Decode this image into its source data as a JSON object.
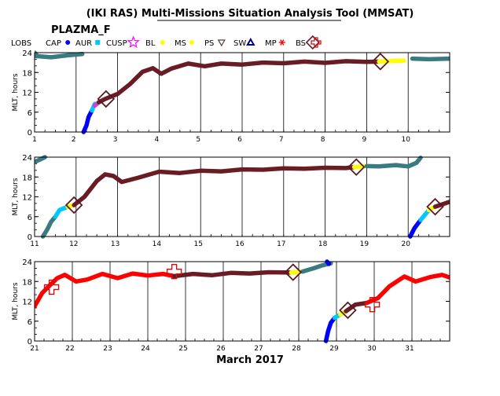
{
  "title": "(IKI RAS) Multi-Missions Situation Analysis Tool (MMSAT)",
  "mission": "PLAZMA_F",
  "month_label": "March 2017",
  "ylabel": "MLT, hours",
  "legend": [
    {
      "label": "LOBS",
      "symbol": "none",
      "color": "#000000"
    },
    {
      "label": "CAP",
      "symbol": "dot",
      "color": "#0000ff"
    },
    {
      "label": "AUR",
      "symbol": "square",
      "color": "#00c8ff"
    },
    {
      "label": "CUSP",
      "symbol": "star",
      "color": "#ff00ff"
    },
    {
      "label": "BL",
      "symbol": "dot",
      "color": "#ffff00"
    },
    {
      "label": "MS",
      "symbol": "dot",
      "color": "#ffff00"
    },
    {
      "label": "PS",
      "symbol": "triangle-down",
      "color": "#5a3a2a"
    },
    {
      "label": "SW",
      "symbol": "triangle",
      "color": "#000080"
    },
    {
      "label": "MP",
      "symbol": "asterisk",
      "color": "#ff0000"
    },
    {
      "label": "BS",
      "symbol": "diamond",
      "color": "#6a1c24"
    },
    {
      "label": "",
      "symbol": "cross",
      "color": "#cc1010"
    }
  ],
  "chart_data": [
    {
      "type": "line",
      "xlim": [
        1,
        11
      ],
      "xticks": [
        "1",
        "2",
        "3",
        "4",
        "5",
        "6",
        "7",
        "8",
        "9",
        "10"
      ],
      "ylim": [
        0,
        24
      ],
      "yticks": [
        "0",
        "6",
        "12",
        "18",
        "24"
      ],
      "ylabel": "MLT, hours",
      "series": [
        {
          "region": "SW",
          "color": "#3a7a80",
          "points": [
            [
              1.0,
              23.0
            ],
            [
              1.4,
              22.6
            ],
            [
              1.8,
              23.2
            ],
            [
              2.15,
              23.6
            ]
          ]
        },
        {
          "region": "SW",
          "color": "#3a7a80",
          "points": [
            [
              1.0,
              24.0
            ],
            [
              1.05,
              23.3
            ]
          ]
        },
        {
          "region": "CAP",
          "color": "#0000ff",
          "points": [
            [
              2.18,
              0.0
            ],
            [
              2.25,
              2.0
            ],
            [
              2.3,
              4.5
            ],
            [
              2.38,
              6.5
            ]
          ]
        },
        {
          "region": "AUR",
          "color": "#00c8ff",
          "points": [
            [
              2.38,
              6.5
            ],
            [
              2.45,
              8.5
            ]
          ]
        },
        {
          "region": "CUSP",
          "color": "#cc44cc",
          "points": [
            [
              2.45,
              8.0
            ],
            [
              2.55,
              9.0
            ]
          ]
        },
        {
          "region": "MS",
          "color": "#6a1c24",
          "points": [
            [
              2.55,
              9.0
            ],
            [
              2.7,
              10.0
            ],
            [
              3.0,
              11.5
            ],
            [
              3.3,
              14.5
            ],
            [
              3.6,
              18.2
            ],
            [
              3.85,
              19.3
            ],
            [
              4.05,
              17.6
            ],
            [
              4.3,
              19.2
            ],
            [
              4.7,
              20.7
            ],
            [
              5.1,
              19.9
            ],
            [
              5.5,
              20.7
            ],
            [
              6.0,
              20.4
            ],
            [
              6.5,
              21.0
            ],
            [
              7.0,
              20.8
            ],
            [
              7.5,
              21.3
            ],
            [
              8.0,
              20.9
            ],
            [
              8.5,
              21.4
            ],
            [
              9.0,
              21.2
            ],
            [
              9.3,
              21.3
            ]
          ]
        },
        {
          "region": "BL",
          "color": "#ffff00",
          "points": [
            [
              9.3,
              21.3
            ],
            [
              9.9,
              21.6
            ]
          ]
        },
        {
          "region": "SW",
          "color": "#3a7a80",
          "points": [
            [
              10.1,
              22.2
            ],
            [
              10.5,
              22.0
            ],
            [
              11.0,
              22.2
            ]
          ]
        }
      ],
      "crossings": [
        {
          "type": "BS",
          "x": 2.72,
          "y": 10.0
        },
        {
          "type": "BS",
          "x": 9.33,
          "y": 21.3
        }
      ]
    },
    {
      "type": "line",
      "xlim": [
        11,
        21
      ],
      "xticks": [
        "11",
        "12",
        "13",
        "14",
        "15",
        "16",
        "17",
        "18",
        "19",
        "20"
      ],
      "ylim": [
        0,
        24
      ],
      "yticks": [
        "0",
        "6",
        "12",
        "18",
        "24"
      ],
      "ylabel": "MLT, hours",
      "series": [
        {
          "region": "SW",
          "color": "#3a7a80",
          "points": [
            [
              11.0,
              22.5
            ],
            [
              11.25,
              24.0
            ]
          ]
        },
        {
          "region": "SW",
          "color": "#3a7a80",
          "points": [
            [
              11.2,
              0.0
            ],
            [
              11.3,
              2.0
            ],
            [
              11.4,
              4.5
            ],
            [
              11.5,
              6.0
            ]
          ]
        },
        {
          "region": "AUR",
          "color": "#00c8ff",
          "points": [
            [
              11.5,
              6.0
            ],
            [
              11.6,
              8.0
            ],
            [
              11.8,
              9.0
            ]
          ]
        },
        {
          "region": "BL",
          "color": "#ffff00",
          "points": [
            [
              11.8,
              9.0
            ],
            [
              11.95,
              9.5
            ]
          ]
        },
        {
          "region": "MS",
          "color": "#6a1c24",
          "points": [
            [
              11.95,
              9.5
            ],
            [
              12.2,
              12.0
            ],
            [
              12.5,
              16.8
            ],
            [
              12.7,
              18.8
            ],
            [
              12.9,
              18.3
            ],
            [
              13.1,
              16.5
            ],
            [
              13.5,
              17.8
            ],
            [
              14.0,
              19.6
            ],
            [
              14.5,
              19.2
            ],
            [
              15.0,
              19.9
            ],
            [
              15.5,
              19.7
            ],
            [
              16.0,
              20.3
            ],
            [
              16.5,
              20.2
            ],
            [
              17.0,
              20.6
            ],
            [
              17.5,
              20.5
            ],
            [
              18.0,
              20.8
            ],
            [
              18.5,
              20.7
            ],
            [
              18.7,
              21.0
            ]
          ]
        },
        {
          "region": "BL",
          "color": "#ffff00",
          "points": [
            [
              18.7,
              21.0
            ],
            [
              19.0,
              21.3
            ]
          ]
        },
        {
          "region": "SW",
          "color": "#3a7a80",
          "points": [
            [
              19.0,
              21.3
            ],
            [
              19.3,
              21.2
            ],
            [
              19.7,
              21.6
            ],
            [
              20.0,
              21.2
            ],
            [
              20.2,
              22.3
            ],
            [
              20.3,
              23.8
            ]
          ]
        },
        {
          "region": "CAP",
          "color": "#0000ff",
          "points": [
            [
              20.05,
              0.0
            ],
            [
              20.15,
              2.5
            ],
            [
              20.3,
              5.0
            ]
          ]
        },
        {
          "region": "AUR",
          "color": "#00c8ff",
          "points": [
            [
              20.3,
              5.0
            ],
            [
              20.5,
              8.0
            ]
          ]
        },
        {
          "region": "BL",
          "color": "#ffff00",
          "points": [
            [
              20.5,
              8.0
            ],
            [
              20.65,
              9.0
            ]
          ]
        },
        {
          "region": "MS",
          "color": "#6a1c24",
          "points": [
            [
              20.65,
              9.0
            ],
            [
              21.0,
              10.5
            ]
          ]
        }
      ],
      "crossings": [
        {
          "type": "BS",
          "x": 11.95,
          "y": 9.5
        },
        {
          "type": "BS",
          "x": 18.75,
          "y": 21.0
        },
        {
          "type": "BS",
          "x": 20.65,
          "y": 9.0
        }
      ]
    },
    {
      "type": "line",
      "xlim": [
        21,
        32
      ],
      "xticks": [
        "21",
        "22",
        "23",
        "24",
        "25",
        "26",
        "27",
        "28",
        "29",
        "30",
        "31"
      ],
      "ylim": [
        0,
        24
      ],
      "yticks": [
        "0",
        "6",
        "12",
        "18",
        "24"
      ],
      "ylabel": "MLT, hours",
      "series": [
        {
          "region": "MP",
          "color": "#ff0000",
          "points": [
            [
              21.0,
              10.5
            ],
            [
              21.2,
              14.5
            ],
            [
              21.4,
              16.8
            ],
            [
              21.6,
              19.0
            ],
            [
              21.8,
              20.0
            ],
            [
              22.1,
              18.0
            ],
            [
              22.4,
              18.6
            ],
            [
              22.8,
              20.3
            ],
            [
              23.2,
              19.0
            ],
            [
              23.6,
              20.4
            ],
            [
              24.0,
              19.8
            ],
            [
              24.4,
              20.3
            ],
            [
              24.7,
              19.6
            ]
          ]
        },
        {
          "region": "MS",
          "color": "#6a1c24",
          "points": [
            [
              24.7,
              19.6
            ],
            [
              25.2,
              20.3
            ],
            [
              25.7,
              19.9
            ],
            [
              26.2,
              20.6
            ],
            [
              26.7,
              20.4
            ],
            [
              27.2,
              20.8
            ],
            [
              27.8,
              20.7
            ]
          ]
        },
        {
          "region": "BL",
          "color": "#ffff00",
          "points": [
            [
              27.8,
              20.7
            ],
            [
              28.1,
              21.0
            ]
          ]
        },
        {
          "region": "SW",
          "color": "#3a7a80",
          "points": [
            [
              28.1,
              21.0
            ],
            [
              28.4,
              22.0
            ],
            [
              28.6,
              22.8
            ],
            [
              28.85,
              23.5
            ]
          ]
        },
        {
          "region": "CAP",
          "color": "#0000ff",
          "points": [
            [
              28.75,
              24.0
            ],
            [
              28.8,
              23.3
            ]
          ]
        },
        {
          "region": "CAP",
          "color": "#0000ff",
          "points": [
            [
              28.72,
              0.0
            ],
            [
              28.78,
              3.0
            ],
            [
              28.85,
              5.5
            ],
            [
              28.95,
              7.0
            ]
          ]
        },
        {
          "region": "AUR",
          "color": "#00c8ff",
          "points": [
            [
              28.95,
              7.0
            ],
            [
              29.1,
              8.0
            ]
          ]
        },
        {
          "region": "BL",
          "color": "#ffff00",
          "points": [
            [
              29.1,
              8.0
            ],
            [
              29.25,
              9.0
            ]
          ]
        },
        {
          "region": "MS",
          "color": "#6a1c24",
          "points": [
            [
              29.25,
              9.0
            ],
            [
              29.5,
              11.0
            ],
            [
              29.8,
              11.5
            ]
          ]
        },
        {
          "region": "MP",
          "color": "#ff0000",
          "points": [
            [
              29.8,
              11.5
            ],
            [
              30.1,
              13.0
            ],
            [
              30.4,
              16.5
            ],
            [
              30.8,
              19.5
            ],
            [
              31.1,
              18.0
            ],
            [
              31.5,
              19.4
            ],
            [
              31.8,
              20.0
            ],
            [
              32.0,
              19.2
            ]
          ]
        }
      ],
      "crossings": [
        {
          "type": "MP",
          "x": 21.45,
          "y": 16.3
        },
        {
          "type": "MP",
          "x": 24.7,
          "y": 21.0
        },
        {
          "type": "BS",
          "x": 27.85,
          "y": 20.8
        },
        {
          "type": "BS",
          "x": 29.3,
          "y": 9.3
        },
        {
          "type": "MP",
          "x": 29.95,
          "y": 11.0
        }
      ]
    }
  ]
}
